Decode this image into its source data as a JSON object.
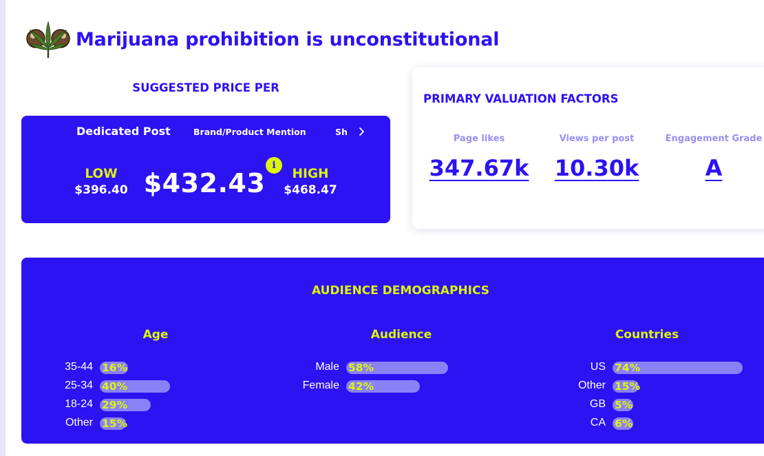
{
  "header": {
    "logo_icon": "cannabis-leaf-icon",
    "title": "Marijuana prohibition is unconstitutional"
  },
  "price": {
    "heading": "SUGGESTED PRICE PER",
    "tabs": [
      {
        "label": "Dedicated Post",
        "active": true
      },
      {
        "label": "Brand/Product Mention",
        "active": false
      },
      {
        "label": "Sh",
        "active": false
      }
    ],
    "next_icon": "chevron-right-icon",
    "low_label": "LOW",
    "low_value": "$396.40",
    "main_value": "$432.43",
    "high_label": "HIGH",
    "high_value": "$468.47",
    "info_icon": "info-icon"
  },
  "factors": {
    "heading": "PRIMARY VALUATION FACTORS",
    "items": [
      {
        "label": "Page likes",
        "value": "347.67k"
      },
      {
        "label": "Views per post",
        "value": "10.30k"
      },
      {
        "label": "Engagement Grade",
        "value": "A"
      }
    ]
  },
  "demographics": {
    "heading": "AUDIENCE DEMOGRAPHICS",
    "columns": [
      {
        "title": "Age",
        "rows": [
          {
            "label": "35-44",
            "pct": "16%",
            "value": 16
          },
          {
            "label": "25-34",
            "pct": "40%",
            "value": 40
          },
          {
            "label": "18-24",
            "pct": "29%",
            "value": 29
          },
          {
            "label": "Other",
            "pct": "15%",
            "value": 15
          }
        ]
      },
      {
        "title": "Audience",
        "rows": [
          {
            "label": "Male",
            "pct": "58%",
            "value": 58
          },
          {
            "label": "Female",
            "pct": "42%",
            "value": 42
          }
        ]
      },
      {
        "title": "Countries",
        "rows": [
          {
            "label": "US",
            "pct": "74%",
            "value": 74
          },
          {
            "label": "Other",
            "pct": "15%",
            "value": 15
          },
          {
            "label": "GB",
            "pct": "5%",
            "value": 5
          },
          {
            "label": "CA",
            "pct": "6%",
            "value": 6
          }
        ]
      }
    ],
    "colors": {
      "accent": "#dbf50e",
      "bar_track": "#8a80f7",
      "card": "#2d12f2"
    }
  }
}
